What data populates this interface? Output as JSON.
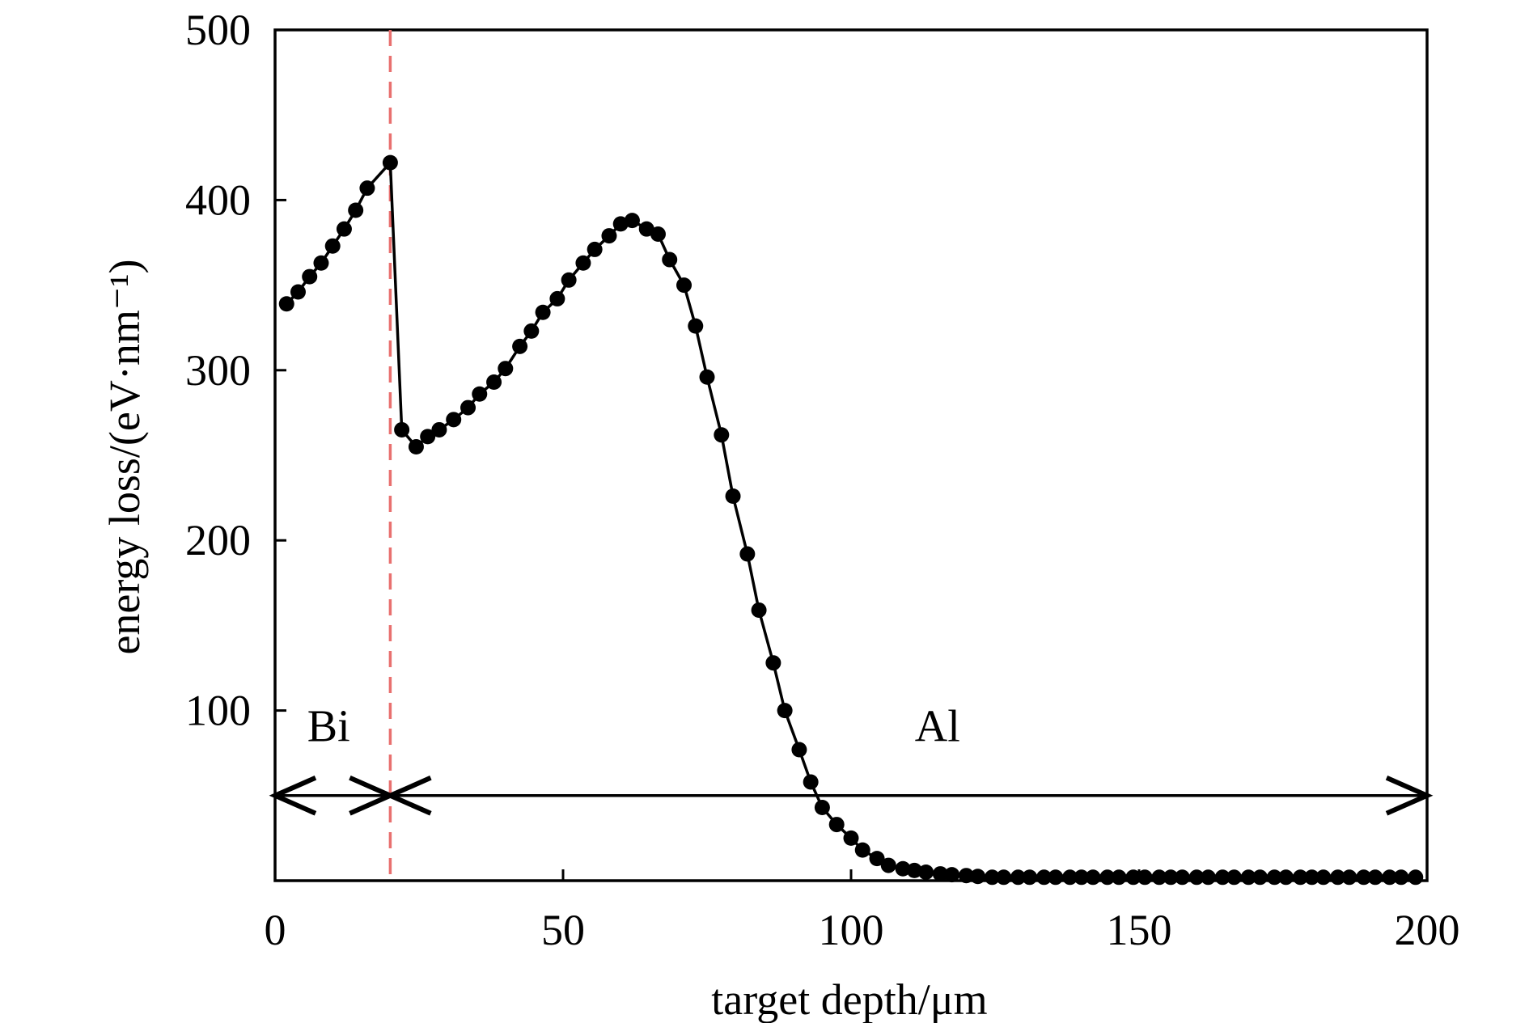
{
  "chart_data": {
    "type": "line",
    "xlabel": "target depth/μm",
    "ylabel": "energy loss/(eV·nm⁻¹)",
    "xlim": [
      0,
      200
    ],
    "ylim": [
      0,
      500
    ],
    "xticks": [
      {
        "value": 0,
        "label": "0"
      },
      {
        "value": 50,
        "label": "50"
      },
      {
        "value": 100,
        "label": "100"
      },
      {
        "value": 150,
        "label": "150"
      },
      {
        "value": 200,
        "label": "200"
      }
    ],
    "yticks": [
      {
        "value": 100,
        "label": "100"
      },
      {
        "value": 200,
        "label": "200"
      },
      {
        "value": 300,
        "label": "300"
      },
      {
        "value": 400,
        "label": "400"
      },
      {
        "value": 500,
        "label": "500"
      }
    ],
    "grid": false,
    "legend": "none",
    "boundary": {
      "x": 20,
      "color": "#e8706f",
      "style": "dashed"
    },
    "regions": [
      {
        "label": "Bi",
        "x_start": 0,
        "x_end": 20
      },
      {
        "label": "Al",
        "x_start": 20,
        "x_end": 200
      }
    ],
    "arrow_level_y": 50,
    "series": [
      {
        "color": "#000000",
        "marker": "circle",
        "points": [
          [
            2.0,
            339
          ],
          [
            4.0,
            346
          ],
          [
            6.0,
            355
          ],
          [
            8.0,
            363
          ],
          [
            10.0,
            373
          ],
          [
            12.0,
            383
          ],
          [
            14.0,
            394
          ],
          [
            16.0,
            407
          ],
          [
            20.0,
            422
          ],
          [
            22.0,
            265
          ],
          [
            24.5,
            255
          ],
          [
            26.5,
            261
          ],
          [
            28.5,
            265
          ],
          [
            31.0,
            271
          ],
          [
            33.5,
            278
          ],
          [
            35.5,
            286
          ],
          [
            38.0,
            293
          ],
          [
            40.0,
            301
          ],
          [
            42.5,
            314
          ],
          [
            44.5,
            323
          ],
          [
            46.5,
            334
          ],
          [
            49.0,
            342
          ],
          [
            51.0,
            353
          ],
          [
            53.5,
            363
          ],
          [
            55.5,
            371
          ],
          [
            58.0,
            379
          ],
          [
            60.0,
            386
          ],
          [
            62.0,
            388
          ],
          [
            64.5,
            383
          ],
          [
            66.5,
            380
          ],
          [
            68.5,
            365
          ],
          [
            71.0,
            350
          ],
          [
            73.0,
            326
          ],
          [
            75.0,
            296
          ],
          [
            77.5,
            262
          ],
          [
            79.5,
            226
          ],
          [
            82.0,
            192
          ],
          [
            84.0,
            159
          ],
          [
            86.5,
            128
          ],
          [
            88.5,
            100
          ],
          [
            91.0,
            77
          ],
          [
            93.0,
            58
          ],
          [
            95.0,
            43
          ],
          [
            97.5,
            33
          ],
          [
            100.0,
            25
          ],
          [
            102.0,
            18
          ],
          [
            104.5,
            13
          ],
          [
            106.5,
            9
          ],
          [
            109.0,
            7
          ],
          [
            111.0,
            6
          ],
          [
            113.0,
            5
          ],
          [
            115.5,
            4
          ],
          [
            117.5,
            3.5
          ],
          [
            120.0,
            3
          ],
          [
            122.0,
            2.5
          ],
          [
            124.5,
            2
          ],
          [
            126.5,
            2
          ],
          [
            129.0,
            2
          ],
          [
            131.0,
            2
          ],
          [
            133.5,
            2
          ],
          [
            135.5,
            2
          ],
          [
            138.0,
            2
          ],
          [
            140.0,
            2
          ],
          [
            142.0,
            2
          ],
          [
            144.5,
            2
          ],
          [
            146.5,
            2
          ],
          [
            149.0,
            2
          ],
          [
            151.0,
            2
          ],
          [
            153.5,
            2
          ],
          [
            155.5,
            2
          ],
          [
            157.5,
            2
          ],
          [
            160.0,
            2
          ],
          [
            162.0,
            2
          ],
          [
            164.5,
            2
          ],
          [
            166.5,
            2
          ],
          [
            169.0,
            2
          ],
          [
            171.0,
            2
          ],
          [
            173.5,
            2
          ],
          [
            175.5,
            2
          ],
          [
            178.0,
            2
          ],
          [
            180.0,
            2
          ],
          [
            182.0,
            2
          ],
          [
            184.5,
            2
          ],
          [
            186.5,
            2
          ],
          [
            189.0,
            2
          ],
          [
            191.0,
            2
          ],
          [
            193.5,
            2
          ],
          [
            195.5,
            2
          ],
          [
            198.0,
            2
          ]
        ]
      }
    ]
  }
}
